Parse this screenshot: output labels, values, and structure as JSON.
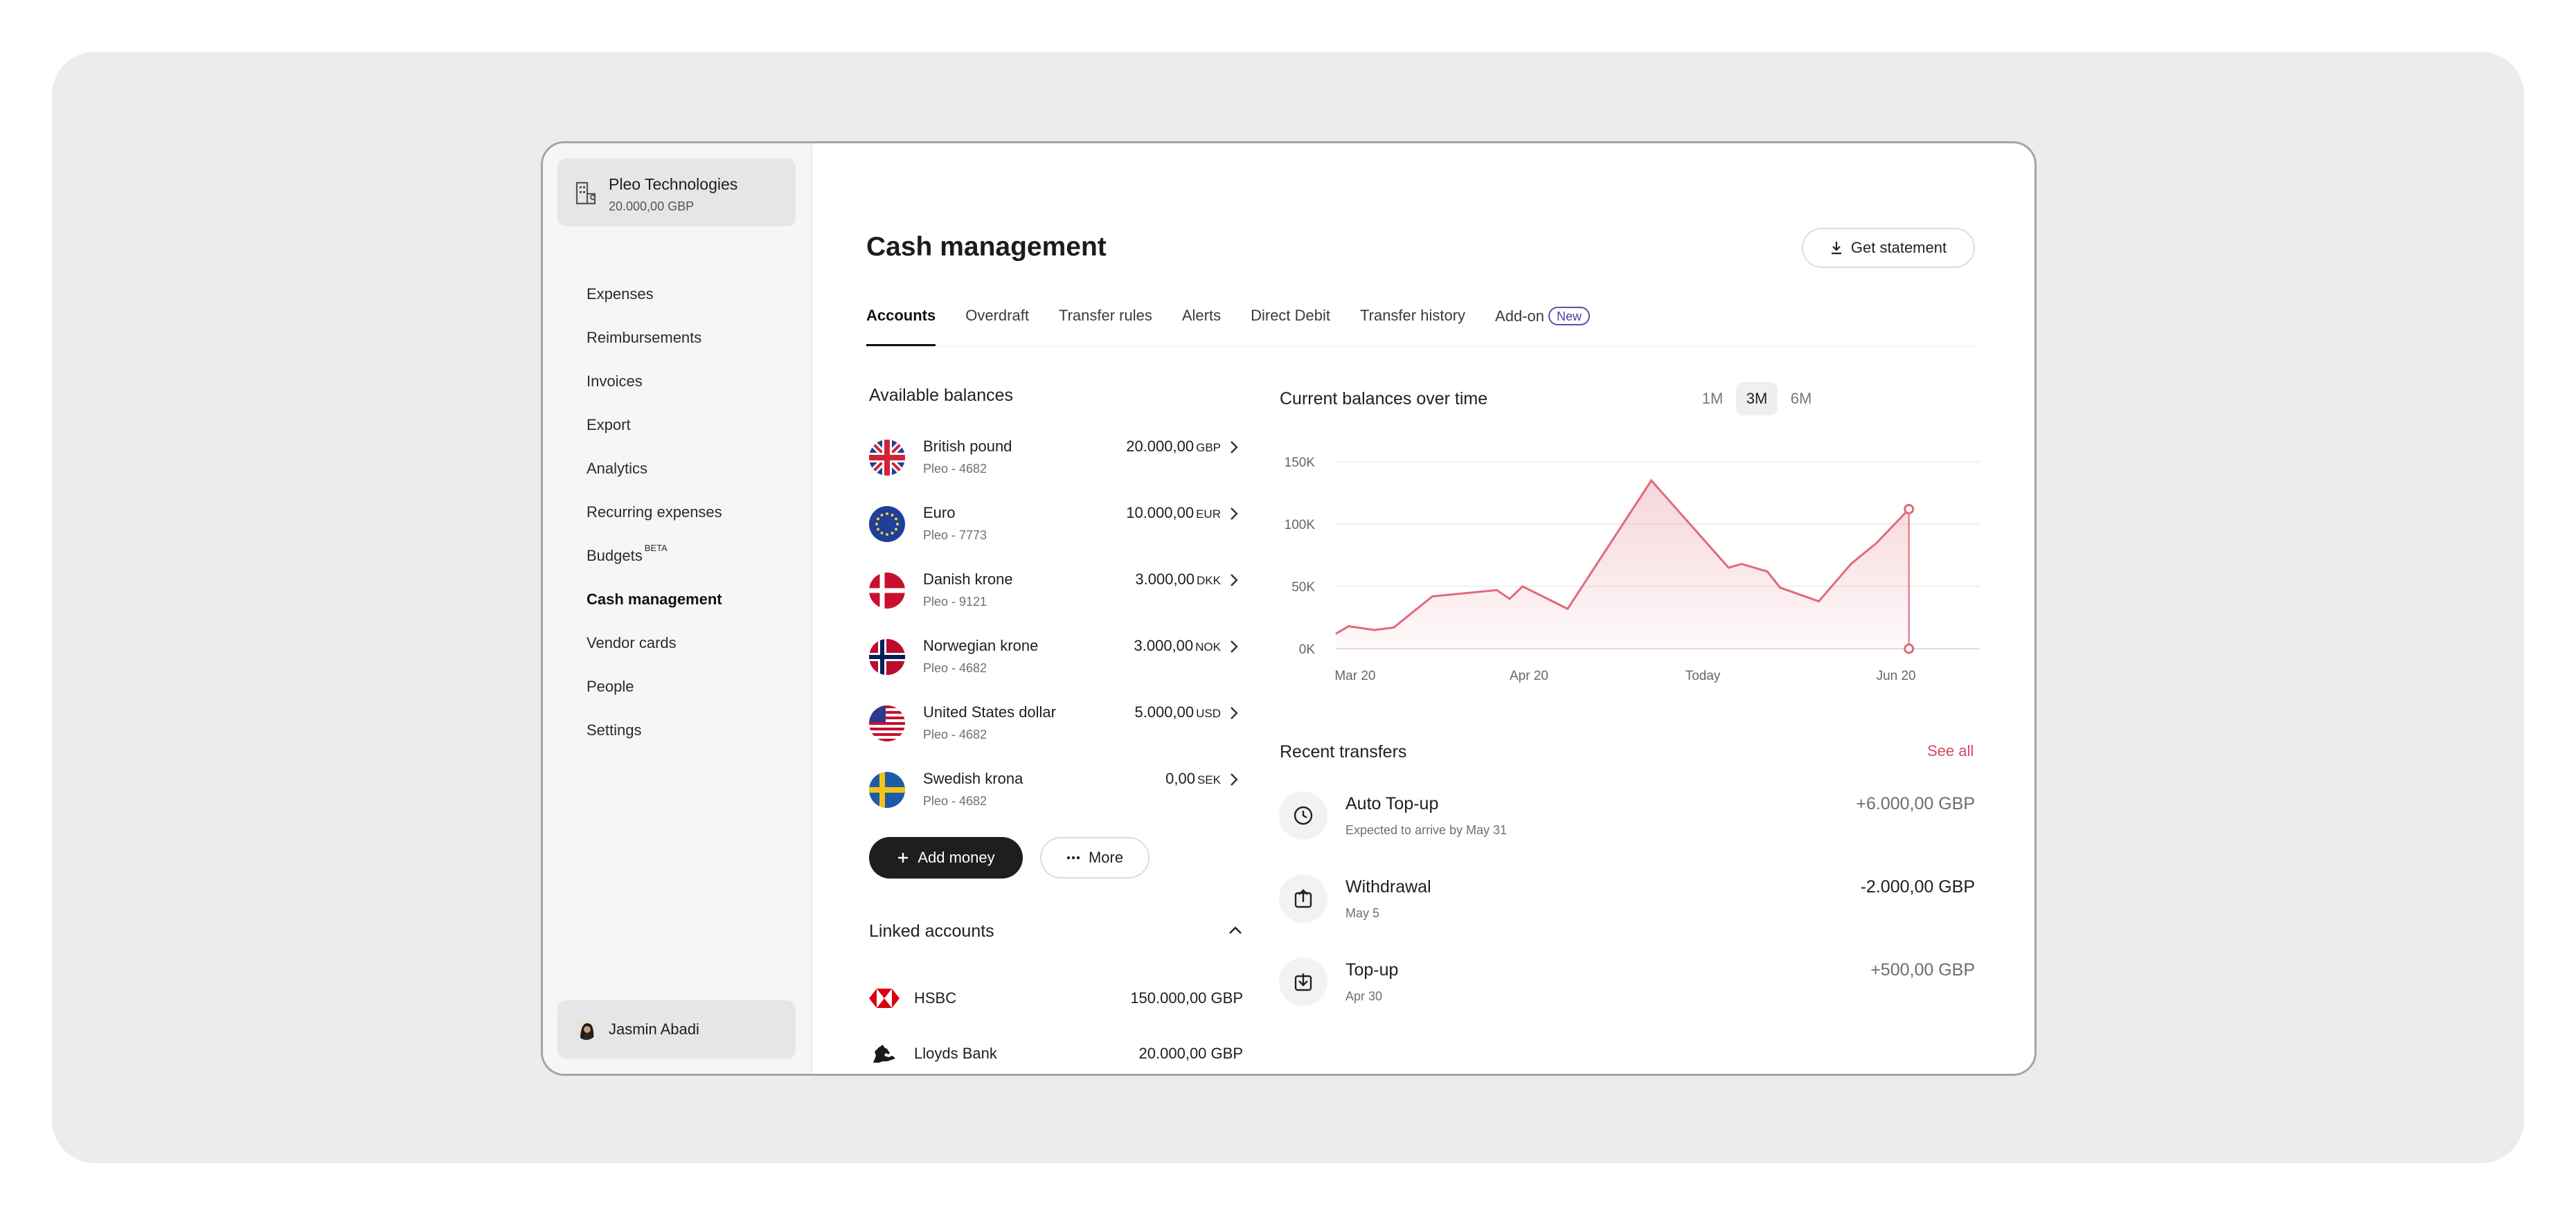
{
  "org": {
    "name": "Pleo Technologies",
    "balance": "20.000,00 GBP",
    "icon": "building-icon"
  },
  "nav": {
    "expenses": "Expenses",
    "reimbursements": "Reimbursements",
    "invoices": "Invoices",
    "export": "Export",
    "analytics": "Analytics",
    "recurring": "Recurring expenses",
    "budgets": "Budgets",
    "budgets_badge": "BETA",
    "cash": "Cash management",
    "vendor": "Vendor cards",
    "people": "People",
    "settings": "Settings",
    "active": "Cash management"
  },
  "user": {
    "name": "Jasmin Abadi"
  },
  "page": {
    "title": "Cash management",
    "statement_button": "Get statement",
    "tabs": [
      "Accounts",
      "Overdraft",
      "Transfer rules",
      "Alerts",
      "Direct Debit",
      "Transfer history",
      "Add-on"
    ],
    "tab_badge": "New",
    "active_tab": "Accounts"
  },
  "balances": {
    "title": "Available balances",
    "items": [
      {
        "name": "British pound",
        "account": "Pleo - 4682",
        "amount": "20.000,00",
        "code": "GBP",
        "flag": "uk-flag-icon"
      },
      {
        "name": "Euro",
        "account": "Pleo - 7773",
        "amount": "10.000,00",
        "code": "EUR",
        "flag": "eu-flag-icon"
      },
      {
        "name": "Danish krone",
        "account": "Pleo - 9121",
        "amount": "3.000,00",
        "code": "DKK",
        "flag": "dk-flag-icon"
      },
      {
        "name": "Norwegian krone",
        "account": "Pleo - 4682",
        "amount": "3.000,00",
        "code": "NOK",
        "flag": "no-flag-icon"
      },
      {
        "name": "United States dollar",
        "account": "Pleo - 4682",
        "amount": "5.000,00",
        "code": "USD",
        "flag": "us-flag-icon"
      },
      {
        "name": "Swedish krona",
        "account": "Pleo - 4682",
        "amount": "0,00",
        "code": "SEK",
        "flag": "se-flag-icon"
      }
    ],
    "add_button": "Add money",
    "more_button": "More"
  },
  "linked": {
    "title": "Linked accounts",
    "items": [
      {
        "name": "HSBC",
        "amount": "150.000,00 GBP",
        "logo": "hsbc-logo-icon"
      },
      {
        "name": "Lloyds Bank",
        "amount": "20.000,00 GBP",
        "logo": "lloyds-horse-icon"
      }
    ]
  },
  "chart_header": {
    "title": "Current balances over time",
    "ranges": [
      "1M",
      "3M",
      "6M"
    ],
    "active_range": "3M"
  },
  "chart_data": {
    "type": "area",
    "title": "Current balances over time",
    "xlabel": "",
    "ylabel": "",
    "x_ticks": [
      "Mar 20",
      "Apr 20",
      "Today",
      "Jun 20"
    ],
    "y_ticks": [
      "0K",
      "50K",
      "100K",
      "150K"
    ],
    "ylim": [
      0,
      150000
    ],
    "grid": true,
    "color": "#e06a7c",
    "x": [
      0,
      0.02,
      0.06,
      0.09,
      0.15,
      0.25,
      0.27,
      0.29,
      0.36,
      0.49,
      0.61,
      0.63,
      0.67,
      0.69,
      0.75,
      0.8,
      0.84,
      0.89
    ],
    "values": [
      12000,
      18000,
      15000,
      17000,
      42000,
      47000,
      40000,
      50000,
      32000,
      135000,
      65000,
      68000,
      62000,
      49000,
      38000,
      68000,
      85000,
      112000
    ],
    "markers": [
      {
        "x": 0.89,
        "value": 112000
      },
      {
        "x": 0.89,
        "value": 0
      }
    ]
  },
  "transfers": {
    "title": "Recent transfers",
    "see_all": "See all",
    "items": [
      {
        "title": "Auto Top-up",
        "sub": "Expected to arrive by May 31",
        "amount": "+6.000,00 GBP",
        "icon": "clock-icon"
      },
      {
        "title": "Withdrawal",
        "sub": "May 5",
        "amount": "-2.000,00 GBP",
        "icon": "upload-icon"
      },
      {
        "title": "Top-up",
        "sub": "Apr 30",
        "amount": "+500,00 GBP",
        "icon": "download-icon"
      }
    ]
  }
}
